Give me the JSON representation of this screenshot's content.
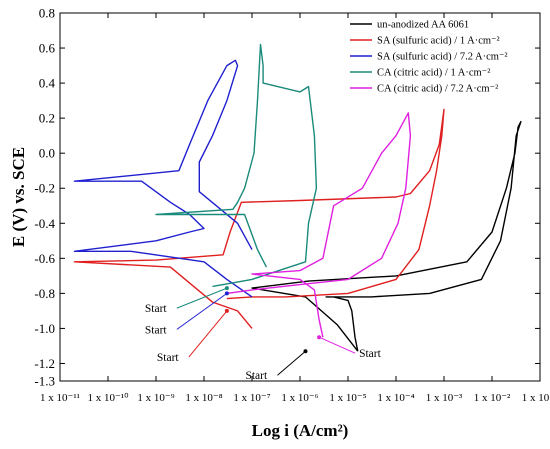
{
  "chart_data": {
    "type": "line",
    "title": "",
    "xlabel": "Log i (A/cm²)",
    "ylabel": "E (V) vs. SCE",
    "xscale": "log",
    "xlim": [
      1e-11,
      0.1
    ],
    "ylim": [
      -1.3,
      0.8
    ],
    "x_tick_labels": [
      "1 x 10⁻¹¹",
      "1 x 10⁻¹⁰",
      "1 x 10⁻⁹",
      "1 x 10⁻⁸",
      "1 x 10⁻⁷",
      "1 x 10⁻⁶",
      "1 x 10⁻⁵",
      "1 x 10⁻⁴",
      "1 x 10⁻³",
      "1 x 10⁻²",
      "1 x 10⁻¹"
    ],
    "y_tick_labels": [
      "0.8",
      "0.6",
      "0.4",
      "0.2",
      "0.0",
      "-0.2",
      "-0.4",
      "-0.6",
      "-0.8",
      "-1.0",
      "-1.2",
      "-1.3"
    ],
    "y_tick_values": [
      0.8,
      0.6,
      0.4,
      0.2,
      0.0,
      -0.2,
      -0.4,
      -0.6,
      -0.8,
      -1.0,
      -1.2,
      -1.3
    ],
    "grid": false,
    "legend_position": "top-right",
    "series": [
      {
        "name": "un-anodized AA 6061",
        "color": "#000000",
        "points": [
          [
            1.6e-05,
            -1.13
          ],
          [
            6e-06,
            -0.98
          ],
          [
            1.3e-06,
            -0.82
          ],
          [
            1e-07,
            -0.77
          ],
          [
            1.5e-06,
            -0.73
          ],
          [
            0.0001,
            -0.7
          ],
          [
            0.003,
            -0.62
          ],
          [
            0.01,
            -0.45
          ],
          [
            0.02,
            -0.2
          ],
          [
            0.03,
            0.0
          ],
          [
            0.035,
            0.15
          ],
          [
            0.04,
            0.18
          ],
          [
            0.032,
            0.1
          ],
          [
            0.025,
            -0.2
          ],
          [
            0.015,
            -0.5
          ],
          [
            0.006,
            -0.72
          ],
          [
            0.0005,
            -0.8
          ],
          [
            3e-05,
            -0.82
          ],
          [
            3.5e-06,
            -0.82
          ],
          [
            5e-06,
            -0.82
          ],
          [
            1e-05,
            -0.84
          ],
          [
            1.2e-05,
            -0.9
          ],
          [
            1.4e-05,
            -1.05
          ],
          [
            1.6e-05,
            -1.13
          ]
        ]
      },
      {
        "name": "SA (sulfuric acid) / 1 A·cm⁻²",
        "color": "#e02020",
        "points": [
          [
            1e-07,
            -1.0
          ],
          [
            5e-08,
            -0.9
          ],
          [
            1.5e-08,
            -0.85
          ],
          [
            2e-09,
            -0.65
          ],
          [
            2e-11,
            -0.62
          ],
          [
            1e-09,
            -0.61
          ],
          [
            2.5e-08,
            -0.58
          ],
          [
            3.5e-08,
            -0.45
          ],
          [
            6e-08,
            -0.28
          ],
          [
            1e-06,
            -0.27
          ],
          [
            0.0001,
            -0.25
          ],
          [
            0.0002,
            -0.23
          ],
          [
            0.0005,
            -0.1
          ],
          [
            0.0008,
            0.05
          ],
          [
            0.001,
            0.25
          ],
          [
            0.0009,
            0.1
          ],
          [
            0.0007,
            -0.1
          ],
          [
            0.0005,
            -0.3
          ],
          [
            0.0003,
            -0.55
          ],
          [
            0.0001,
            -0.72
          ],
          [
            1e-05,
            -0.8
          ],
          [
            5e-07,
            -0.82
          ],
          [
            1e-07,
            -0.82
          ],
          [
            3e-08,
            -0.83
          ]
        ]
      },
      {
        "name": "SA (sulfuric acid) / 7.2 A·cm⁻²",
        "color": "#2020d0",
        "points": [
          [
            1e-07,
            -0.82
          ],
          [
            3e-08,
            -0.72
          ],
          [
            1e-08,
            -0.62
          ],
          [
            3e-10,
            -0.56
          ],
          [
            2e-11,
            -0.56
          ],
          [
            1e-09,
            -0.5
          ],
          [
            5e-09,
            -0.45
          ],
          [
            1e-08,
            -0.43
          ],
          [
            5e-09,
            -0.35
          ],
          [
            2e-09,
            -0.28
          ],
          [
            5e-10,
            -0.16
          ],
          [
            2e-11,
            -0.16
          ],
          [
            3e-09,
            -0.1
          ],
          [
            5e-09,
            0.05
          ],
          [
            1.2e-08,
            0.3
          ],
          [
            3e-08,
            0.5
          ],
          [
            4.5e-08,
            0.53
          ],
          [
            5e-08,
            0.5
          ],
          [
            3e-08,
            0.3
          ],
          [
            1.5e-08,
            0.1
          ],
          [
            8e-09,
            -0.05
          ],
          [
            8e-09,
            -0.22
          ],
          [
            5e-08,
            -0.4
          ],
          [
            1e-07,
            -0.55
          ]
        ]
      },
      {
        "name": "CA (citric acid) / 1 A·cm⁻²",
        "color": "#1a8a7a",
        "points": [
          [
            2e-07,
            -0.65
          ],
          [
            1.3e-07,
            -0.55
          ],
          [
            7e-08,
            -0.35
          ],
          [
            1e-09,
            -0.35
          ],
          [
            4e-08,
            -0.32
          ],
          [
            5e-08,
            -0.28
          ],
          [
            7e-08,
            -0.2
          ],
          [
            1.1e-07,
            0.0
          ],
          [
            1.3e-07,
            0.3
          ],
          [
            1.5e-07,
            0.62
          ],
          [
            1.7e-07,
            0.5
          ],
          [
            1.7e-07,
            0.4
          ],
          [
            1e-06,
            0.35
          ],
          [
            1.5e-06,
            0.38
          ],
          [
            2e-06,
            0.1
          ],
          [
            2.2e-06,
            -0.2
          ],
          [
            1.5e-06,
            -0.4
          ],
          [
            1.3e-06,
            -0.62
          ],
          [
            1e-07,
            -0.72
          ],
          [
            1.5e-08,
            -0.76
          ]
        ]
      },
      {
        "name": "CA (citric acid) / 7.2 A·cm⁻²",
        "color": "#e020e0",
        "points": [
          [
            3e-06,
            -1.05
          ],
          [
            2.5e-06,
            -0.95
          ],
          [
            2e-06,
            -0.78
          ],
          [
            1e-06,
            -0.72
          ],
          [
            1e-07,
            -0.69
          ],
          [
            1e-06,
            -0.67
          ],
          [
            3e-06,
            -0.6
          ],
          [
            5e-06,
            -0.3
          ],
          [
            2e-05,
            -0.2
          ],
          [
            5e-05,
            0.0
          ],
          [
            0.0001,
            0.1
          ],
          [
            0.00018,
            0.23
          ],
          [
            0.0002,
            0.1
          ],
          [
            0.00016,
            -0.2
          ],
          [
            0.00011,
            -0.4
          ],
          [
            5e-05,
            -0.6
          ],
          [
            1e-05,
            -0.72
          ],
          [
            1e-06,
            -0.75
          ],
          [
            1e-07,
            -0.78
          ],
          [
            3e-08,
            -0.8
          ]
        ]
      }
    ],
    "annotations": [
      {
        "text": "Start",
        "color": "#1a8a7a",
        "x": 3e-08,
        "y": -0.77
      },
      {
        "text": "Start",
        "color": "#2020d0",
        "x": 3e-08,
        "y": -0.8
      },
      {
        "text": "Start",
        "color": "#e02020",
        "x": 3e-08,
        "y": -0.9
      },
      {
        "text": "Start",
        "color": "#000000",
        "x": 1.3e-06,
        "y": -1.13
      },
      {
        "text": "Start",
        "color": "#e020e0",
        "x": 2.5e-06,
        "y": -1.05
      }
    ]
  }
}
